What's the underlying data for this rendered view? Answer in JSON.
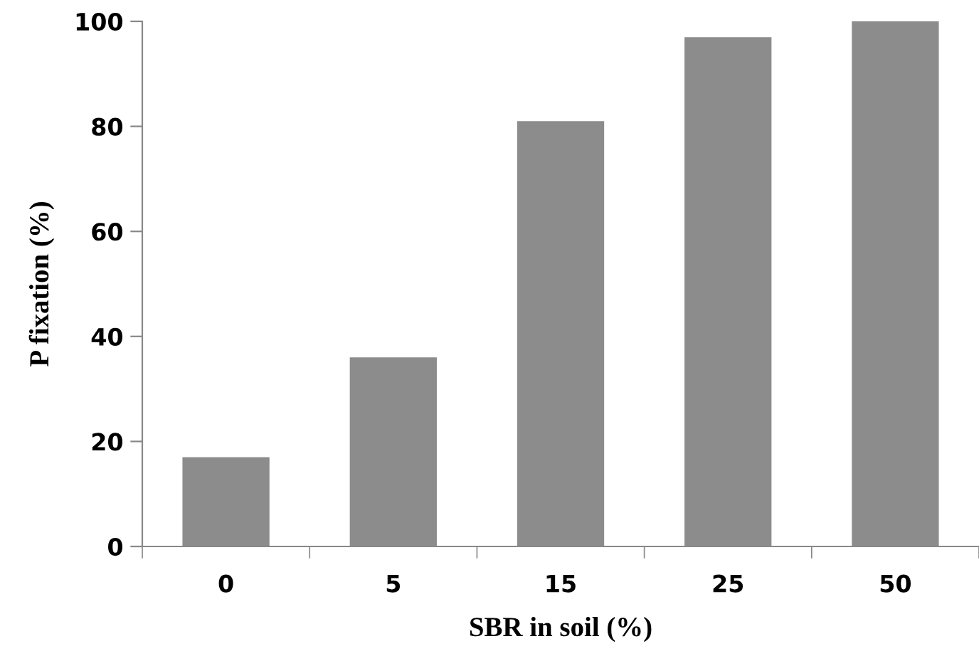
{
  "chart_data": {
    "type": "bar",
    "xlabel": "SBR in soil (%)",
    "ylabel": "P fixation (%)",
    "categories": [
      "0",
      "5",
      "15",
      "25",
      "50"
    ],
    "values": [
      17,
      36,
      81,
      97,
      100
    ],
    "color": "#8c8c8c",
    "ylim": [
      0,
      100
    ],
    "yticks": [
      0,
      20,
      40,
      60,
      80,
      100
    ],
    "grid": false,
    "legend": false
  }
}
